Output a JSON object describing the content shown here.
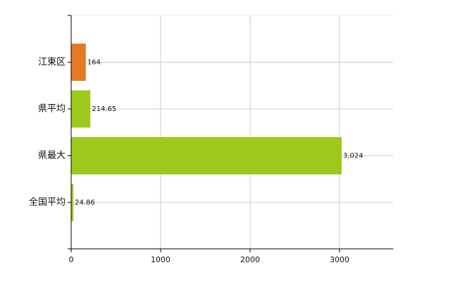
{
  "chart_data": {
    "type": "bar",
    "orientation": "horizontal",
    "categories": [
      "江東区",
      "県平均",
      "県最大",
      "全国平均"
    ],
    "values": [
      164,
      214.65,
      3024,
      24.86
    ],
    "value_labels": [
      "164",
      "214.65",
      "3,024",
      "24.86"
    ],
    "bar_colors": [
      "#e47a24",
      "#9dc81c",
      "#9dc81c",
      "#9dc81c"
    ],
    "xlim": [
      0,
      3600
    ],
    "x_ticks": [
      0,
      1000,
      2000,
      3000
    ],
    "x_tick_labels": [
      "0",
      "1000",
      "2000",
      "3000"
    ],
    "grid": true,
    "legend": "none",
    "title": "",
    "xlabel": "",
    "ylabel": ""
  }
}
